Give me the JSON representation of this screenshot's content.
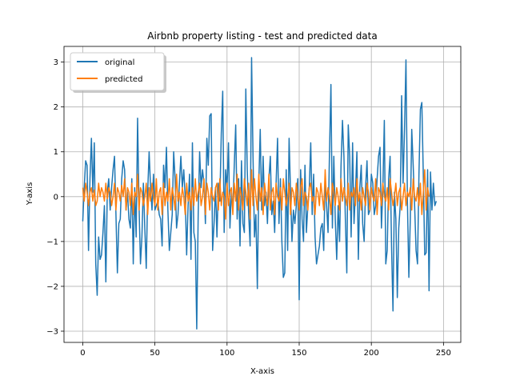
{
  "chart_data": {
    "type": "line",
    "title": "Airbnb property listing - test and predicted data",
    "xlabel": "X-axis",
    "ylabel": "Y-axis",
    "xlim": [
      -13,
      262
    ],
    "ylim": [
      -3.25,
      3.35
    ],
    "xticks": [
      0,
      50,
      100,
      150,
      200,
      250
    ],
    "yticks": [
      -3,
      -2,
      -1,
      0,
      1,
      2,
      3
    ],
    "grid": true,
    "legend_position": "top-left",
    "series": [
      {
        "name": "original",
        "color": "#1f77b4",
        "values": [
          -0.55,
          0.2,
          0.8,
          0.7,
          -1.2,
          0.4,
          1.3,
          0.1,
          1.2,
          -1.5,
          -2.2,
          -0.9,
          -1.4,
          -1.3,
          -0.8,
          -0.2,
          -1.9,
          0.1,
          0.4,
          -0.3,
          0.2,
          0.6,
          0.9,
          -0.4,
          -1.7,
          -0.6,
          -0.5,
          0.4,
          0.8,
          0.6,
          -0.3,
          0.1,
          -0.5,
          -0.7,
          0.4,
          -1.5,
          0.2,
          -0.9,
          1.75,
          -0.2,
          -1.5,
          -0.9,
          0.3,
          -0.7,
          -1.6,
          0.1,
          1.0,
          0.2,
          -0.3,
          0.5,
          -0.3,
          -0.2,
          -0.1,
          -0.4,
          -0.5,
          -1.1,
          0.7,
          0.2,
          1.1,
          -0.3,
          -1.2,
          -0.8,
          -0.4,
          1.0,
          0.4,
          -0.7,
          -0.4,
          0.3,
          0.9,
          0.2,
          0.6,
          0.0,
          -1.3,
          -0.2,
          0.5,
          -1.4,
          1.2,
          -0.8,
          -1.0,
          -2.95,
          -0.4,
          1.0,
          0.2,
          0.6,
          0.3,
          -0.6,
          1.3,
          0.7,
          1.8,
          1.85,
          -1.2,
          -0.6,
          0.2,
          -0.9,
          0.3,
          -0.1,
          1.4,
          2.35,
          -0.8,
          0.6,
          0.2,
          1.2,
          -0.7,
          0.1,
          -0.3,
          0.7,
          1.6,
          -0.5,
          0.4,
          -1.1,
          0.8,
          -0.6,
          -0.8,
          2.4,
          0.6,
          -0.4,
          -1.1,
          3.1,
          0.9,
          -0.9,
          -0.4,
          -2.05,
          0.3,
          1.5,
          -0.3,
          0.9,
          -0.2,
          0.1,
          -0.6,
          0.4,
          0.9,
          -0.4,
          -0.1,
          -0.8,
          0.3,
          1.3,
          -0.6,
          0.4,
          -1.0,
          -1.8,
          -1.7,
          0.6,
          -1.2,
          1.3,
          0.1,
          -1.0,
          -0.3,
          -0.6,
          -0.2,
          0.4,
          -2.3,
          0.6,
          -0.5,
          -1.0,
          0.7,
          -0.8,
          -0.2,
          0.2,
          1.2,
          -0.4,
          0.5,
          -0.9,
          -1.5,
          -1.3,
          -1.1,
          -0.7,
          -0.6,
          -1.2,
          0.4,
          -0.2,
          -0.8,
          1.0,
          2.5,
          -0.7,
          0.9,
          -0.5,
          -1.4,
          -0.2,
          -1.0,
          0.7,
          1.7,
          0.9,
          -0.5,
          -1.7,
          1.6,
          0.9,
          -0.9,
          1.2,
          -0.6,
          0.1,
          1.0,
          -1.4,
          0.2,
          0.7,
          -0.6,
          -1.0,
          0.2,
          0.8,
          -0.4,
          -0.3,
          0.5,
          0.3,
          -0.4,
          -0.2,
          0.4,
          0.9,
          1.1,
          -0.7,
          0.2,
          1.7,
          -1.5,
          -1.2,
          0.4,
          0.9,
          -1.1,
          -2.55,
          0.1,
          -0.5,
          -2.25,
          -0.7,
          -0.2,
          2.25,
          0.3,
          1.5,
          3.05,
          -0.1,
          -1.8,
          -0.5,
          1.5,
          0.7,
          -0.2,
          -1.2,
          -1.5,
          0.5,
          1.95,
          2.1,
          0.5,
          -1.3,
          -1.25,
          0.6,
          -2.1,
          0.55,
          -0.3,
          0.3,
          -0.2,
          -0.1
        ],
        "x_start": 0
      },
      {
        "name": "predicted",
        "color": "#ff7f0e",
        "values": [
          0.2,
          -0.1,
          0.3,
          0.1,
          -0.2,
          0.1,
          0.2,
          -0.1,
          0.15,
          -0.2,
          -0.1,
          0.3,
          0.0,
          0.2,
          0.1,
          -0.1,
          0.3,
          -0.05,
          0.2,
          0.1,
          -0.2,
          0.0,
          0.3,
          -0.3,
          0.2,
          0.1,
          -0.1,
          0.25,
          0.0,
          0.4,
          -0.3,
          0.2,
          0.1,
          -0.2,
          0.3,
          -0.4,
          0.1,
          0.0,
          0.5,
          -0.3,
          0.2,
          0.1,
          -0.2,
          0.0,
          0.3,
          -0.4,
          0.2,
          -0.1,
          0.3,
          0.0,
          -0.2,
          0.4,
          -0.3,
          0.1,
          0.2,
          -0.4,
          0.3,
          -0.2,
          0.1,
          -0.1,
          0.4,
          -0.3,
          0.2,
          0.0,
          -0.3,
          0.5,
          -0.1,
          0.1,
          -0.2,
          0.2,
          0.0,
          -0.4,
          0.3,
          -0.1,
          0.1,
          -0.3,
          0.2,
          -0.2,
          0.4,
          -0.1,
          0.1,
          0.3,
          -0.2,
          0.0,
          0.4,
          -0.4,
          0.3,
          0.1,
          -0.3,
          0.2,
          0.0,
          -0.1,
          0.2,
          0.3,
          -0.3,
          0.4,
          -0.2,
          0.1,
          0.0,
          -0.5,
          0.3,
          -0.2,
          0.1,
          0.2,
          -0.4,
          0.3,
          -0.1,
          0.5,
          -0.3,
          0.2,
          0.0,
          -0.3,
          0.4,
          0.1,
          -0.2,
          0.3,
          -0.5,
          0.6,
          -0.2,
          0.4,
          0.0,
          -0.3,
          0.5,
          -0.1,
          0.2,
          -0.4,
          0.3,
          0.0,
          -0.2,
          0.5,
          -0.3,
          0.1,
          0.2,
          -0.4,
          0.3,
          0.0,
          -0.1,
          0.2,
          -0.3,
          0.4,
          0.1,
          -0.2,
          0.0,
          0.3,
          -0.4,
          0.2,
          0.1,
          -0.2,
          0.3,
          0.0,
          -0.3,
          0.2,
          0.4,
          -0.2,
          0.1,
          0.0,
          -0.3,
          0.2,
          0.3,
          -0.1,
          0.0,
          -0.4,
          0.2,
          0.1,
          -0.2,
          0.3,
          0.0,
          -0.3,
          0.6,
          -0.1,
          0.2,
          0.0,
          -0.4,
          0.3,
          0.1,
          -0.2,
          0.2,
          0.0,
          -0.3,
          0.4,
          -0.1,
          0.2,
          0.0,
          -0.2,
          0.3,
          -0.3,
          0.1,
          0.0,
          0.2,
          -0.2,
          0.4,
          -0.1,
          0.1,
          -0.3,
          0.2,
          0.0,
          -0.2,
          0.3,
          0.1,
          -0.3,
          0.2,
          0.0,
          -0.1,
          0.4,
          -0.4,
          0.2,
          0.1,
          -0.2,
          0.3,
          0.0,
          -0.1,
          0.2,
          -0.3,
          0.4,
          0.1,
          -0.2,
          0.0,
          0.3,
          -0.2,
          0.1,
          0.2,
          -0.3,
          0.0,
          0.3,
          -0.2,
          0.1,
          0.0,
          0.2,
          -0.3,
          0.4,
          0.0,
          -0.1,
          0.2,
          -0.2,
          0.3,
          -0.4,
          0.1,
          0.6,
          -0.3,
          0.2,
          0.0
        ],
        "x_start": 0
      }
    ]
  }
}
